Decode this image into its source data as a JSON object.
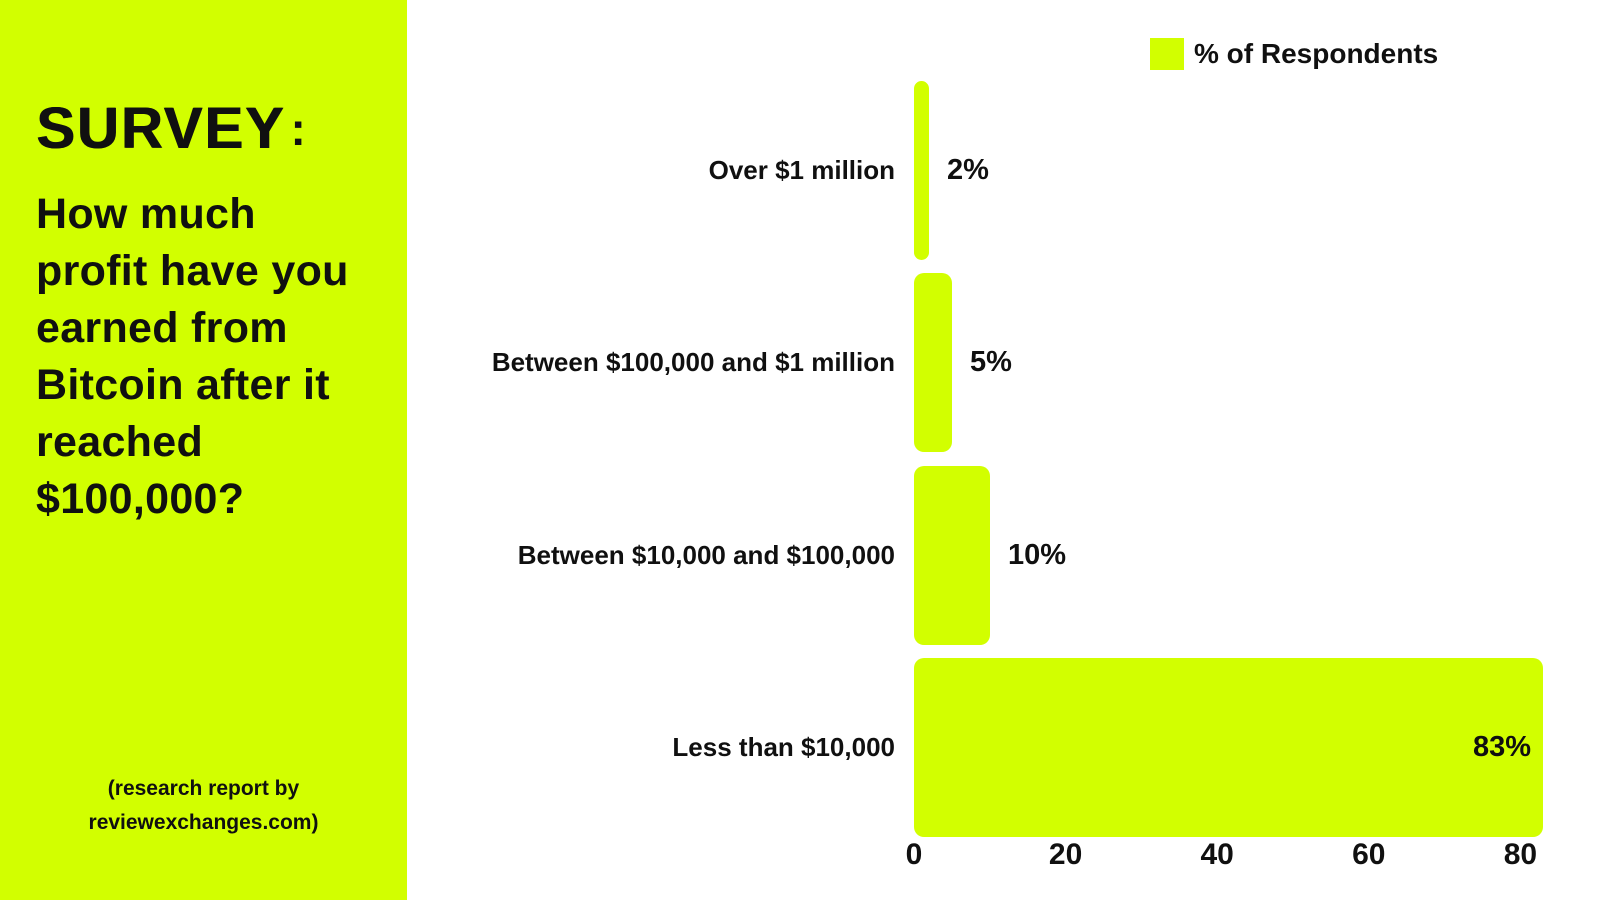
{
  "panel": {
    "title": "SURVEY",
    "title_colon": ":",
    "question": "How much profit have you earned from Bitcoin after it reached $100,000?",
    "question_lines": [
      "How much",
      "profit have you",
      "earned from",
      "Bitcoin after it",
      "reached",
      "$100,000?"
    ],
    "footer_lines": [
      "(research report by",
      "reviewexchanges.com)"
    ]
  },
  "chart_data": {
    "type": "bar",
    "orientation": "horizontal",
    "legend": [
      {
        "label": "% of Respondents",
        "color": "#D2FF00"
      }
    ],
    "legend_position": "top-right",
    "categories": [
      "Over $1 million",
      "Between $100,000 and $1 million",
      "Between $10,000 and $100,000",
      "Less than $10,000"
    ],
    "values": [
      2,
      5,
      10,
      83
    ],
    "value_labels": [
      "2%",
      "5%",
      "10%",
      "83%"
    ],
    "x_ticks": [
      "0",
      "20",
      "40",
      "60",
      "80"
    ],
    "xlim": [
      0,
      85
    ],
    "grid": false,
    "bar_color": "#D2FF00"
  },
  "colors": {
    "accent": "#D2FF00",
    "text": "#101010",
    "background": "#FFFFFF"
  }
}
